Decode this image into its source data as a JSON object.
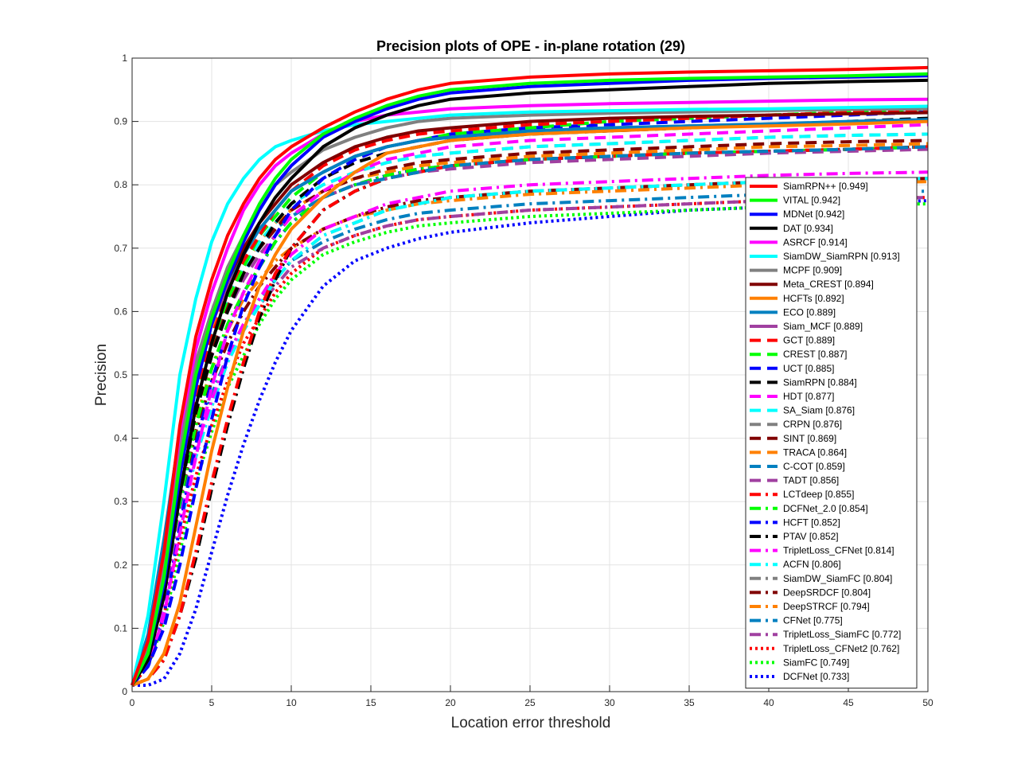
{
  "chart_data": {
    "type": "line",
    "title": "Precision plots of OPE - in-plane rotation (29)",
    "xlabel": "Location error threshold",
    "ylabel": "Precision",
    "xlim": [
      0,
      50
    ],
    "ylim": [
      0,
      1
    ],
    "x_ticks": [
      "0",
      "5",
      "10",
      "15",
      "20",
      "25",
      "30",
      "35",
      "40",
      "45",
      "50"
    ],
    "y_ticks": [
      "0",
      "0.1",
      "0.2",
      "0.3",
      "0.4",
      "0.5",
      "0.6",
      "0.7",
      "0.8",
      "0.9",
      "1"
    ],
    "grid": true,
    "legend_position": "lower-right",
    "x": [
      0,
      1,
      2,
      3,
      4,
      5,
      6,
      7,
      8,
      9,
      10,
      12,
      14,
      16,
      18,
      20,
      25,
      30,
      35,
      40,
      45,
      50
    ],
    "series": [
      {
        "name": "SiamRPN++",
        "score": "0.949",
        "color": "#ff0000",
        "style": "solid",
        "values": [
          0.01,
          0.08,
          0.22,
          0.42,
          0.56,
          0.65,
          0.72,
          0.77,
          0.81,
          0.84,
          0.86,
          0.89,
          0.915,
          0.935,
          0.95,
          0.96,
          0.97,
          0.975,
          0.978,
          0.98,
          0.982,
          0.985
        ]
      },
      {
        "name": "VITAL",
        "score": "0.942",
        "color": "#00ff00",
        "style": "solid",
        "values": [
          0.01,
          0.06,
          0.18,
          0.36,
          0.5,
          0.59,
          0.66,
          0.72,
          0.77,
          0.81,
          0.84,
          0.88,
          0.905,
          0.925,
          0.94,
          0.95,
          0.96,
          0.965,
          0.968,
          0.97,
          0.972,
          0.975
        ]
      },
      {
        "name": "MDNet",
        "score": "0.942",
        "color": "#0000ff",
        "style": "solid",
        "values": [
          0.01,
          0.06,
          0.17,
          0.34,
          0.48,
          0.58,
          0.65,
          0.71,
          0.76,
          0.8,
          0.83,
          0.875,
          0.9,
          0.92,
          0.935,
          0.945,
          0.955,
          0.96,
          0.965,
          0.968,
          0.97,
          0.972
        ]
      },
      {
        "name": "DAT",
        "score": "0.934",
        "color": "#000000",
        "style": "solid",
        "values": [
          0.01,
          0.05,
          0.15,
          0.31,
          0.45,
          0.55,
          0.63,
          0.69,
          0.74,
          0.78,
          0.81,
          0.86,
          0.89,
          0.91,
          0.925,
          0.935,
          0.945,
          0.95,
          0.955,
          0.96,
          0.963,
          0.965
        ]
      },
      {
        "name": "ASRCF",
        "score": "0.914",
        "color": "#ff00ff",
        "style": "solid",
        "values": [
          0.01,
          0.08,
          0.22,
          0.41,
          0.54,
          0.63,
          0.7,
          0.76,
          0.8,
          0.83,
          0.85,
          0.88,
          0.9,
          0.91,
          0.915,
          0.92,
          0.925,
          0.928,
          0.93,
          0.932,
          0.934,
          0.935
        ]
      },
      {
        "name": "SiamDW_SiamRPN",
        "score": "0.913",
        "color": "#00ffff",
        "style": "solid",
        "values": [
          0.01,
          0.12,
          0.3,
          0.5,
          0.62,
          0.71,
          0.77,
          0.81,
          0.84,
          0.86,
          0.87,
          0.885,
          0.895,
          0.9,
          0.905,
          0.91,
          0.915,
          0.917,
          0.919,
          0.92,
          0.922,
          0.924
        ]
      },
      {
        "name": "MCPF",
        "score": "0.909",
        "color": "#808080",
        "style": "solid",
        "values": [
          0.01,
          0.07,
          0.2,
          0.38,
          0.52,
          0.6,
          0.67,
          0.72,
          0.76,
          0.8,
          0.82,
          0.855,
          0.875,
          0.89,
          0.9,
          0.905,
          0.91,
          0.913,
          0.915,
          0.917,
          0.919,
          0.92
        ]
      },
      {
        "name": "Meta_CREST",
        "score": "0.894",
        "color": "#800000",
        "style": "solid",
        "values": [
          0.01,
          0.07,
          0.19,
          0.37,
          0.5,
          0.58,
          0.65,
          0.7,
          0.74,
          0.77,
          0.8,
          0.835,
          0.86,
          0.875,
          0.885,
          0.89,
          0.9,
          0.905,
          0.908,
          0.91,
          0.912,
          0.914
        ]
      },
      {
        "name": "HCFTs",
        "score": "0.892",
        "color": "#ff8000",
        "style": "solid",
        "values": [
          0.01,
          0.02,
          0.06,
          0.14,
          0.26,
          0.38,
          0.48,
          0.57,
          0.64,
          0.69,
          0.73,
          0.78,
          0.82,
          0.85,
          0.86,
          0.87,
          0.88,
          0.885,
          0.89,
          0.893,
          0.896,
          0.9
        ]
      },
      {
        "name": "ECO",
        "score": "0.889",
        "color": "#0080c0",
        "style": "solid",
        "values": [
          0.01,
          0.09,
          0.24,
          0.41,
          0.52,
          0.59,
          0.65,
          0.69,
          0.73,
          0.76,
          0.79,
          0.82,
          0.845,
          0.86,
          0.87,
          0.875,
          0.885,
          0.89,
          0.893,
          0.896,
          0.9,
          0.903
        ]
      },
      {
        "name": "Siam_MCF",
        "score": "0.889",
        "color": "#a040a0",
        "style": "solid",
        "values": [
          0.01,
          0.08,
          0.22,
          0.39,
          0.51,
          0.58,
          0.64,
          0.69,
          0.73,
          0.76,
          0.79,
          0.82,
          0.845,
          0.86,
          0.87,
          0.875,
          0.885,
          0.89,
          0.893,
          0.896,
          0.899,
          0.902
        ]
      },
      {
        "name": "GCT",
        "score": "0.889",
        "color": "#ff0000",
        "style": "dashed",
        "values": [
          0.01,
          0.06,
          0.18,
          0.34,
          0.47,
          0.56,
          0.63,
          0.68,
          0.72,
          0.76,
          0.79,
          0.83,
          0.855,
          0.87,
          0.88,
          0.885,
          0.895,
          0.9,
          0.905,
          0.91,
          0.914,
          0.918
        ]
      },
      {
        "name": "CREST",
        "score": "0.887",
        "color": "#00ff00",
        "style": "dashed",
        "values": [
          0.01,
          0.05,
          0.16,
          0.33,
          0.46,
          0.55,
          0.62,
          0.67,
          0.72,
          0.75,
          0.78,
          0.82,
          0.845,
          0.86,
          0.87,
          0.88,
          0.89,
          0.9,
          0.905,
          0.91,
          0.915,
          0.92
        ]
      },
      {
        "name": "UCT",
        "score": "0.885",
        "color": "#0000ff",
        "style": "dashed",
        "values": [
          0.01,
          0.04,
          0.1,
          0.2,
          0.32,
          0.43,
          0.53,
          0.61,
          0.67,
          0.72,
          0.76,
          0.81,
          0.84,
          0.86,
          0.87,
          0.88,
          0.89,
          0.895,
          0.9,
          0.905,
          0.91,
          0.915
        ]
      },
      {
        "name": "SiamRPN",
        "score": "0.884",
        "color": "#000000",
        "style": "dashed",
        "values": [
          0.01,
          0.05,
          0.15,
          0.31,
          0.44,
          0.53,
          0.6,
          0.66,
          0.7,
          0.74,
          0.77,
          0.81,
          0.835,
          0.85,
          0.86,
          0.87,
          0.88,
          0.885,
          0.89,
          0.895,
          0.9,
          0.905
        ]
      },
      {
        "name": "HDT",
        "score": "0.877",
        "color": "#ff00ff",
        "style": "dashed",
        "values": [
          0.01,
          0.04,
          0.12,
          0.25,
          0.37,
          0.48,
          0.57,
          0.63,
          0.68,
          0.72,
          0.75,
          0.79,
          0.82,
          0.84,
          0.85,
          0.86,
          0.87,
          0.875,
          0.88,
          0.885,
          0.89,
          0.895
        ]
      },
      {
        "name": "SA_Siam",
        "score": "0.876",
        "color": "#00ffff",
        "style": "dashed",
        "values": [
          0.01,
          0.07,
          0.2,
          0.36,
          0.48,
          0.56,
          0.62,
          0.67,
          0.71,
          0.74,
          0.77,
          0.8,
          0.82,
          0.835,
          0.845,
          0.85,
          0.86,
          0.865,
          0.87,
          0.875,
          0.878,
          0.88
        ]
      },
      {
        "name": "CRPN",
        "score": "0.876",
        "color": "#808080",
        "style": "dashed",
        "values": [
          0.01,
          0.06,
          0.18,
          0.34,
          0.46,
          0.55,
          0.62,
          0.67,
          0.71,
          0.74,
          0.77,
          0.8,
          0.82,
          0.835,
          0.845,
          0.85,
          0.86,
          0.865,
          0.87,
          0.875,
          0.878,
          0.88
        ]
      },
      {
        "name": "SINT",
        "score": "0.869",
        "color": "#800000",
        "style": "dashed",
        "values": [
          0.01,
          0.06,
          0.17,
          0.33,
          0.45,
          0.54,
          0.61,
          0.66,
          0.7,
          0.73,
          0.76,
          0.79,
          0.81,
          0.825,
          0.835,
          0.84,
          0.85,
          0.855,
          0.86,
          0.865,
          0.868,
          0.87
        ]
      },
      {
        "name": "TRACA",
        "score": "0.864",
        "color": "#ff8000",
        "style": "dashed",
        "values": [
          0.01,
          0.07,
          0.2,
          0.37,
          0.49,
          0.57,
          0.63,
          0.67,
          0.71,
          0.74,
          0.76,
          0.79,
          0.81,
          0.82,
          0.83,
          0.835,
          0.845,
          0.85,
          0.855,
          0.86,
          0.862,
          0.865
        ]
      },
      {
        "name": "C-COT",
        "score": "0.859",
        "color": "#0080c0",
        "style": "dashed",
        "values": [
          0.01,
          0.08,
          0.22,
          0.38,
          0.49,
          0.57,
          0.62,
          0.66,
          0.7,
          0.73,
          0.75,
          0.78,
          0.8,
          0.81,
          0.82,
          0.83,
          0.84,
          0.845,
          0.85,
          0.853,
          0.856,
          0.86
        ]
      },
      {
        "name": "TADT",
        "score": "0.856",
        "color": "#a040a0",
        "style": "dashed",
        "values": [
          0.01,
          0.06,
          0.17,
          0.33,
          0.45,
          0.53,
          0.6,
          0.65,
          0.69,
          0.72,
          0.75,
          0.78,
          0.8,
          0.81,
          0.82,
          0.825,
          0.835,
          0.84,
          0.845,
          0.85,
          0.853,
          0.856
        ]
      },
      {
        "name": "LCTdeep",
        "score": "0.855",
        "color": "#ff0000",
        "style": "dashdot",
        "values": [
          0.01,
          0.02,
          0.05,
          0.12,
          0.22,
          0.33,
          0.43,
          0.52,
          0.6,
          0.66,
          0.7,
          0.76,
          0.79,
          0.81,
          0.82,
          0.83,
          0.84,
          0.845,
          0.85,
          0.853,
          0.856,
          0.86
        ]
      },
      {
        "name": "DCFNet_2.0",
        "score": "0.854",
        "color": "#00ff00",
        "style": "dashdot",
        "values": [
          0.01,
          0.05,
          0.15,
          0.3,
          0.42,
          0.51,
          0.58,
          0.63,
          0.67,
          0.71,
          0.74,
          0.78,
          0.8,
          0.815,
          0.825,
          0.83,
          0.84,
          0.845,
          0.85,
          0.853,
          0.856,
          0.86
        ]
      },
      {
        "name": "HCFT",
        "score": "0.852",
        "color": "#0000ff",
        "style": "dashdot",
        "values": [
          0.01,
          0.04,
          0.12,
          0.26,
          0.39,
          0.49,
          0.57,
          0.63,
          0.67,
          0.71,
          0.74,
          0.78,
          0.8,
          0.815,
          0.825,
          0.83,
          0.84,
          0.845,
          0.85,
          0.853,
          0.856,
          0.86
        ]
      },
      {
        "name": "PTAV",
        "score": "0.852",
        "color": "#000000",
        "style": "dashdot",
        "values": [
          0.01,
          0.02,
          0.05,
          0.12,
          0.21,
          0.32,
          0.42,
          0.51,
          0.59,
          0.65,
          0.7,
          0.76,
          0.79,
          0.81,
          0.82,
          0.83,
          0.84,
          0.845,
          0.85,
          0.853,
          0.856,
          0.86
        ]
      },
      {
        "name": "TripletLoss_CFNet",
        "score": "0.814",
        "color": "#ff00ff",
        "style": "dashdot",
        "values": [
          0.01,
          0.05,
          0.14,
          0.27,
          0.38,
          0.46,
          0.53,
          0.58,
          0.62,
          0.66,
          0.69,
          0.73,
          0.75,
          0.77,
          0.78,
          0.79,
          0.8,
          0.805,
          0.81,
          0.815,
          0.818,
          0.82
        ]
      },
      {
        "name": "ACFN",
        "score": "0.806",
        "color": "#00ffff",
        "style": "dashdot",
        "values": [
          0.01,
          0.05,
          0.13,
          0.26,
          0.37,
          0.45,
          0.52,
          0.57,
          0.61,
          0.65,
          0.68,
          0.72,
          0.74,
          0.76,
          0.77,
          0.78,
          0.79,
          0.795,
          0.8,
          0.805,
          0.808,
          0.81
        ]
      },
      {
        "name": "SiamDW_SiamFC",
        "score": "0.804",
        "color": "#808080",
        "style": "dashdot",
        "values": [
          0.01,
          0.05,
          0.13,
          0.26,
          0.37,
          0.45,
          0.52,
          0.57,
          0.61,
          0.65,
          0.68,
          0.72,
          0.74,
          0.76,
          0.77,
          0.78,
          0.79,
          0.795,
          0.8,
          0.805,
          0.808,
          0.81
        ]
      },
      {
        "name": "DeepSRDCF",
        "score": "0.804",
        "color": "#800000",
        "style": "dashdot",
        "values": [
          0.01,
          0.06,
          0.16,
          0.3,
          0.41,
          0.49,
          0.55,
          0.6,
          0.64,
          0.67,
          0.7,
          0.73,
          0.75,
          0.765,
          0.775,
          0.78,
          0.79,
          0.795,
          0.8,
          0.805,
          0.808,
          0.81
        ]
      },
      {
        "name": "DeepSTRCF",
        "score": "0.794",
        "color": "#ff8000",
        "style": "dashdot",
        "values": [
          0.01,
          0.06,
          0.17,
          0.32,
          0.43,
          0.51,
          0.57,
          0.62,
          0.65,
          0.68,
          0.7,
          0.73,
          0.75,
          0.76,
          0.77,
          0.775,
          0.785,
          0.79,
          0.795,
          0.8,
          0.803,
          0.805
        ]
      },
      {
        "name": "CFNet",
        "score": "0.775",
        "color": "#0080c0",
        "style": "dashdot",
        "values": [
          0.01,
          0.05,
          0.14,
          0.28,
          0.39,
          0.47,
          0.53,
          0.58,
          0.62,
          0.65,
          0.68,
          0.71,
          0.73,
          0.745,
          0.755,
          0.76,
          0.77,
          0.775,
          0.78,
          0.785,
          0.788,
          0.79
        ]
      },
      {
        "name": "TripletLoss_SiamFC",
        "score": "0.772",
        "color": "#a040a0",
        "style": "dashdot",
        "values": [
          0.01,
          0.05,
          0.14,
          0.27,
          0.38,
          0.46,
          0.52,
          0.57,
          0.61,
          0.64,
          0.67,
          0.7,
          0.72,
          0.735,
          0.745,
          0.75,
          0.76,
          0.765,
          0.77,
          0.775,
          0.778,
          0.78
        ]
      },
      {
        "name": "TripletLoss_CFNet2",
        "score": "0.762",
        "color": "#ff0000",
        "style": "dotted",
        "values": [
          0.01,
          0.04,
          0.12,
          0.24,
          0.34,
          0.42,
          0.49,
          0.55,
          0.59,
          0.63,
          0.66,
          0.7,
          0.72,
          0.735,
          0.745,
          0.75,
          0.76,
          0.765,
          0.77,
          0.775,
          0.778,
          0.78
        ]
      },
      {
        "name": "SiamFC",
        "score": "0.749",
        "color": "#00ff00",
        "style": "dotted",
        "values": [
          0.01,
          0.04,
          0.11,
          0.22,
          0.33,
          0.41,
          0.48,
          0.53,
          0.58,
          0.62,
          0.65,
          0.69,
          0.71,
          0.725,
          0.735,
          0.74,
          0.75,
          0.755,
          0.76,
          0.765,
          0.768,
          0.77
        ]
      },
      {
        "name": "DCFNet",
        "score": "0.733",
        "color": "#0000ff",
        "style": "dotted",
        "values": [
          0.01,
          0.01,
          0.02,
          0.06,
          0.13,
          0.22,
          0.31,
          0.39,
          0.46,
          0.52,
          0.57,
          0.64,
          0.68,
          0.7,
          0.715,
          0.725,
          0.74,
          0.75,
          0.76,
          0.765,
          0.77,
          0.775
        ]
      }
    ]
  }
}
